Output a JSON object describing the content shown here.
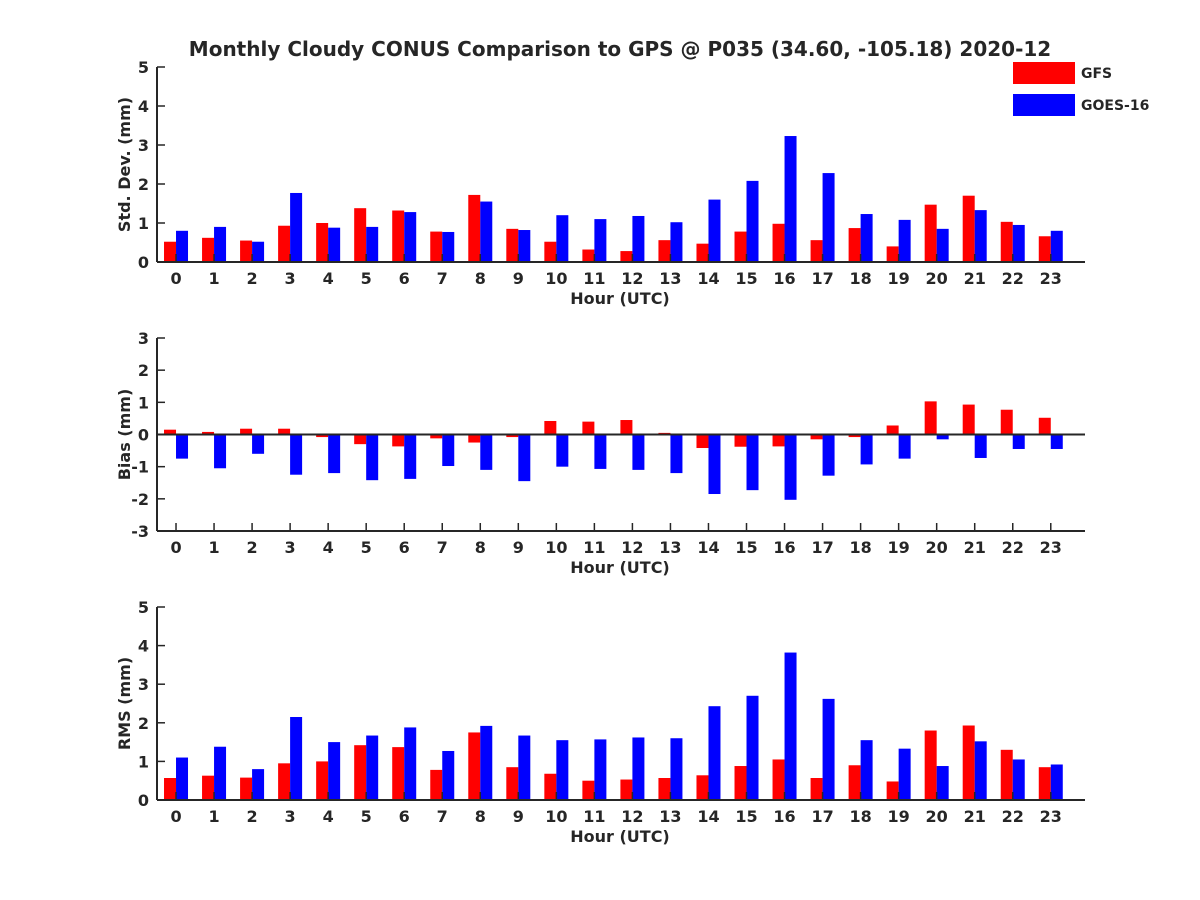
{
  "title": "Monthly Cloudy CONUS Comparison to GPS @ P035 (34.60, -105.18) 2020-12",
  "legend": [
    {
      "name": "GFS",
      "color": "#ff0000"
    },
    {
      "name": "GOES-16",
      "color": "#0000ff"
    }
  ],
  "chart_data": [
    {
      "type": "bar",
      "xlabel": "Hour (UTC)",
      "ylabel": "Std. Dev. (mm)",
      "ylim": [
        0,
        5
      ],
      "yticks": [
        0,
        1,
        2,
        3,
        4,
        5
      ],
      "categories": [
        "0",
        "1",
        "2",
        "3",
        "4",
        "5",
        "6",
        "7",
        "8",
        "9",
        "10",
        "11",
        "12",
        "13",
        "14",
        "15",
        "16",
        "17",
        "18",
        "19",
        "20",
        "21",
        "22",
        "23"
      ],
      "series": [
        {
          "name": "GFS",
          "values": [
            0.52,
            0.62,
            0.55,
            0.93,
            1.0,
            1.38,
            1.32,
            0.78,
            1.72,
            0.85,
            0.52,
            0.32,
            0.28,
            0.56,
            0.47,
            0.78,
            0.98,
            0.56,
            0.87,
            0.4,
            1.47,
            1.7,
            1.03,
            0.66
          ]
        },
        {
          "name": "GOES-16",
          "values": [
            0.8,
            0.9,
            0.52,
            1.77,
            0.88,
            0.9,
            1.28,
            0.77,
            1.55,
            0.82,
            1.2,
            1.1,
            1.18,
            1.02,
            1.6,
            2.08,
            3.23,
            2.28,
            1.23,
            1.08,
            0.85,
            1.33,
            0.95,
            0.8
          ]
        }
      ]
    },
    {
      "type": "bar",
      "xlabel": "Hour (UTC)",
      "ylabel": "Bias (mm)",
      "ylim": [
        -3,
        3
      ],
      "yticks": [
        -3,
        -2,
        -1,
        0,
        1,
        2,
        3
      ],
      "categories": [
        "0",
        "1",
        "2",
        "3",
        "4",
        "5",
        "6",
        "7",
        "8",
        "9",
        "10",
        "11",
        "12",
        "13",
        "14",
        "15",
        "16",
        "17",
        "18",
        "19",
        "20",
        "21",
        "22",
        "23"
      ],
      "series": [
        {
          "name": "GFS",
          "values": [
            0.15,
            0.08,
            0.18,
            0.18,
            -0.08,
            -0.3,
            -0.37,
            -0.12,
            -0.25,
            -0.08,
            0.42,
            0.4,
            0.45,
            0.05,
            -0.42,
            -0.38,
            -0.37,
            -0.15,
            -0.08,
            0.28,
            1.03,
            0.93,
            0.77,
            0.52
          ]
        },
        {
          "name": "GOES-16",
          "values": [
            -0.75,
            -1.05,
            -0.6,
            -1.25,
            -1.2,
            -1.42,
            -1.38,
            -0.98,
            -1.1,
            -1.45,
            -1.0,
            -1.07,
            -1.1,
            -1.2,
            -1.85,
            -1.73,
            -2.03,
            -1.28,
            -0.93,
            -0.75,
            -0.15,
            -0.73,
            -0.45,
            -0.45
          ]
        }
      ]
    },
    {
      "type": "bar",
      "xlabel": "Hour (UTC)",
      "ylabel": "RMS (mm)",
      "ylim": [
        0,
        5
      ],
      "yticks": [
        0,
        1,
        2,
        3,
        4,
        5
      ],
      "categories": [
        "0",
        "1",
        "2",
        "3",
        "4",
        "5",
        "6",
        "7",
        "8",
        "9",
        "10",
        "11",
        "12",
        "13",
        "14",
        "15",
        "16",
        "17",
        "18",
        "19",
        "20",
        "21",
        "22",
        "23"
      ],
      "series": [
        {
          "name": "GFS",
          "values": [
            0.57,
            0.63,
            0.58,
            0.95,
            1.0,
            1.42,
            1.37,
            0.78,
            1.75,
            0.85,
            0.68,
            0.5,
            0.53,
            0.57,
            0.64,
            0.88,
            1.05,
            0.57,
            0.9,
            0.48,
            1.8,
            1.93,
            1.3,
            0.85
          ]
        },
        {
          "name": "GOES-16",
          "values": [
            1.1,
            1.38,
            0.8,
            2.15,
            1.5,
            1.67,
            1.88,
            1.27,
            1.92,
            1.67,
            1.55,
            1.57,
            1.62,
            1.6,
            2.43,
            2.7,
            3.82,
            2.62,
            1.55,
            1.33,
            0.88,
            1.52,
            1.05,
            0.92
          ]
        }
      ]
    }
  ]
}
